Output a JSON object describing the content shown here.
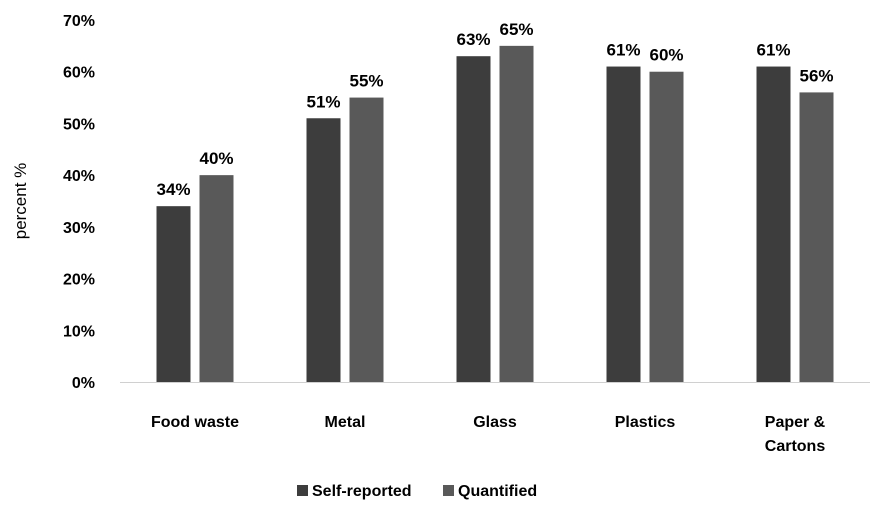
{
  "chart_data": {
    "type": "bar",
    "categories": [
      [
        "Food waste"
      ],
      [
        "Metal"
      ],
      [
        "Glass"
      ],
      [
        "Plastics"
      ],
      [
        "Paper &",
        "Cartons"
      ]
    ],
    "series": [
      {
        "name": "Self-reported",
        "values": [
          34,
          51,
          63,
          61,
          61
        ],
        "color": "#3d3d3d"
      },
      {
        "name": "Quantified",
        "values": [
          40,
          55,
          65,
          60,
          56
        ],
        "color": "#595959"
      }
    ],
    "value_suffix": "%",
    "ylabel": "percent %",
    "xlabel": "",
    "ylim": [
      0,
      70
    ],
    "yticks": [
      0,
      10,
      20,
      30,
      40,
      50,
      60,
      70
    ],
    "ytick_labels": [
      "0%",
      "10%",
      "20%",
      "30%",
      "40%",
      "50%",
      "60%",
      "70%"
    ],
    "grid": false,
    "legend_position": "bottom-center"
  }
}
